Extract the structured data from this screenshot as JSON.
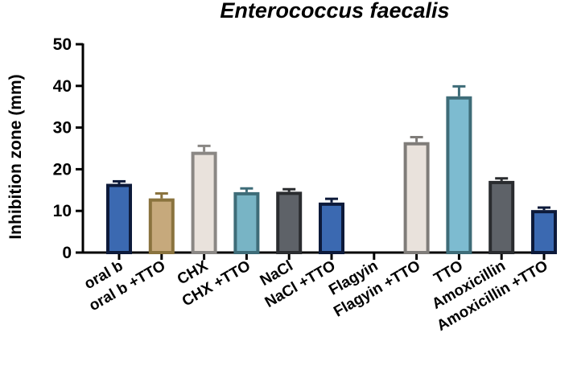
{
  "chart_data": {
    "type": "bar",
    "title": "Enterococcus faecalis",
    "xlabel": "",
    "ylabel": "Inhibition zone (mm)",
    "ylim": [
      0,
      50
    ],
    "yticks": [
      0,
      10,
      20,
      30,
      40,
      50
    ],
    "grid": false,
    "legend": "none",
    "categories": [
      "oral b",
      "oral b +TTO",
      "CHX",
      "CHX +TTO",
      "NaCl",
      "NaCl +TTO",
      "Flagyin",
      "Flagyin +TTO",
      "TTO",
      "Amoxicillin",
      "Amoxicillin +TTO"
    ],
    "values": [
      16.5,
      13.0,
      24.2,
      14.5,
      14.6,
      12.0,
      0,
      26.5,
      37.5,
      17.2,
      10.2
    ],
    "errors": [
      0.6,
      1.2,
      1.4,
      0.9,
      0.6,
      0.9,
      0,
      1.2,
      2.4,
      0.6,
      0.6
    ],
    "fill_colors": [
      "#3b69b1",
      "#c6a97c",
      "#e9e2dc",
      "#78b4c5",
      "#5e6268",
      "#3b69b1",
      "#ffffff",
      "#e9e2dc",
      "#7dbbd0",
      "#5e6268",
      "#3b69b1"
    ],
    "edge_colors": [
      "#0d1a3a",
      "#8a733e",
      "#8a8784",
      "#3e6c78",
      "#2a2c2f",
      "#0d1a3a",
      "#000000",
      "#7f7c79",
      "#3e6c78",
      "#2a2c2f",
      "#0d1a3a"
    ]
  }
}
